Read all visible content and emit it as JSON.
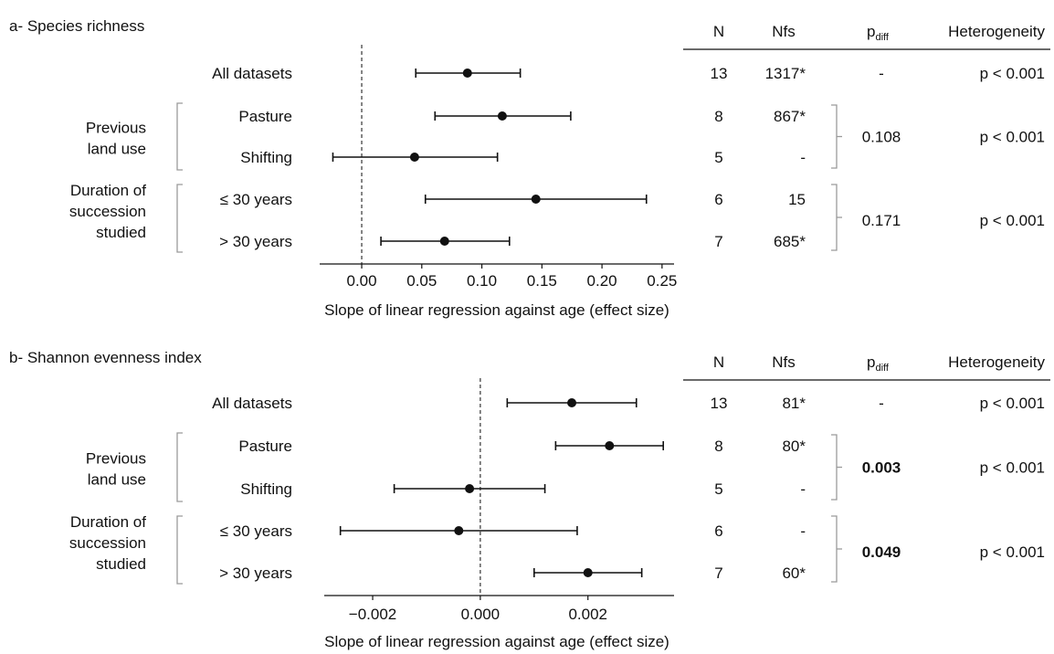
{
  "columns": {
    "n": "N",
    "nfs": "Nfs",
    "pdiff_main": "p",
    "pdiff_sub": "diff",
    "heterogeneity": "Heterogeneity"
  },
  "group_labels": {
    "previous_land_use": [
      "Previous",
      "land use"
    ],
    "duration": [
      "Duration of",
      "succession",
      "studied"
    ]
  },
  "chart_data": [
    {
      "type": "forest",
      "title": "a- Species richness",
      "xlabel": "Slope of linear regression against age (effect size)",
      "xlim": [
        -0.035,
        0.26
      ],
      "ticks": [
        0.0,
        0.05,
        0.1,
        0.15,
        0.2,
        0.25
      ],
      "tick_labels": [
        "0.00",
        "0.05",
        "0.10",
        "0.15",
        "0.20",
        "0.25"
      ],
      "reference_line": 0,
      "rows": [
        {
          "label": "All datasets",
          "estimate": 0.088,
          "lower": 0.045,
          "upper": 0.132,
          "n": "13",
          "nfs": "1317*"
        },
        {
          "label": "Pasture",
          "estimate": 0.117,
          "lower": 0.061,
          "upper": 0.174,
          "n": "8",
          "nfs": "867*"
        },
        {
          "label": "Shifting",
          "estimate": 0.044,
          "lower": -0.024,
          "upper": 0.113,
          "n": "5",
          "nfs": "-"
        },
        {
          "label": "≤ 30 years",
          "estimate": 0.145,
          "lower": 0.053,
          "upper": 0.237,
          "n": "6",
          "nfs": "15"
        },
        {
          "label": "> 30 years",
          "estimate": 0.069,
          "lower": 0.016,
          "upper": 0.123,
          "n": "7",
          "nfs": "685*"
        }
      ],
      "pdiff": {
        "all": "-",
        "land_use": "0.108",
        "duration": "0.171"
      },
      "pdiff_bold": {
        "land_use": false,
        "duration": false
      },
      "heterogeneity": {
        "all": "p < 0.001",
        "land_use": "p < 0.001",
        "duration": "p < 0.001"
      }
    },
    {
      "type": "forest",
      "title": "b- Shannon evenness index",
      "xlabel": "Slope of linear regression against age (effect size)",
      "xlim": [
        -0.0029,
        0.0036
      ],
      "ticks": [
        -0.002,
        0.0,
        0.002
      ],
      "tick_labels": [
        "−0.002",
        "0.000",
        "0.002"
      ],
      "reference_line": 0,
      "rows": [
        {
          "label": "All datasets",
          "estimate": 0.0017,
          "lower": 0.0005,
          "upper": 0.0029,
          "n": "13",
          "nfs": "81*"
        },
        {
          "label": "Pasture",
          "estimate": 0.0024,
          "lower": 0.0014,
          "upper": 0.0034,
          "n": "8",
          "nfs": "80*"
        },
        {
          "label": "Shifting",
          "estimate": -0.0002,
          "lower": -0.0016,
          "upper": 0.0012,
          "n": "5",
          "nfs": "-"
        },
        {
          "label": "≤ 30 years",
          "estimate": -0.0004,
          "lower": -0.0026,
          "upper": 0.0018,
          "n": "6",
          "nfs": "-"
        },
        {
          "label": "> 30 years",
          "estimate": 0.002,
          "lower": 0.001,
          "upper": 0.003,
          "n": "7",
          "nfs": "60*"
        }
      ],
      "pdiff": {
        "all": "-",
        "land_use": "0.003",
        "duration": "0.049"
      },
      "pdiff_bold": {
        "land_use": true,
        "duration": true
      },
      "heterogeneity": {
        "all": "p < 0.001",
        "land_use": "p < 0.001",
        "duration": "p < 0.001"
      }
    }
  ]
}
